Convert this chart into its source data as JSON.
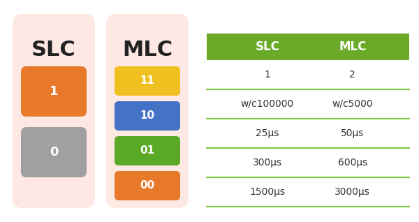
{
  "bg_color": "#ffffff",
  "panel_bg": "#fde8e4",
  "slc_label": "SLC",
  "mlc_label": "MLC",
  "slc_boxes": [
    {
      "label": "1",
      "color": "#e8782a"
    },
    {
      "label": "0",
      "color": "#a0a0a0"
    }
  ],
  "mlc_boxes": [
    {
      "label": "11",
      "color": "#f0c020"
    },
    {
      "label": "10",
      "color": "#4472c4"
    },
    {
      "label": "01",
      "color": "#5aaa28"
    },
    {
      "label": "00",
      "color": "#e8782a"
    }
  ],
  "table_header_bg": "#6aaa28",
  "table_header_text": "#ffffff",
  "table_line_color": "#7ec843",
  "table_headers": [
    "SLC",
    "MLC"
  ],
  "table_rows": [
    [
      "1",
      "2"
    ],
    [
      "w/c100000",
      "w/c5000"
    ],
    [
      "25μs",
      "50μs"
    ],
    [
      "300μs",
      "600μs"
    ],
    [
      "1500μs",
      "3000μs"
    ]
  ]
}
